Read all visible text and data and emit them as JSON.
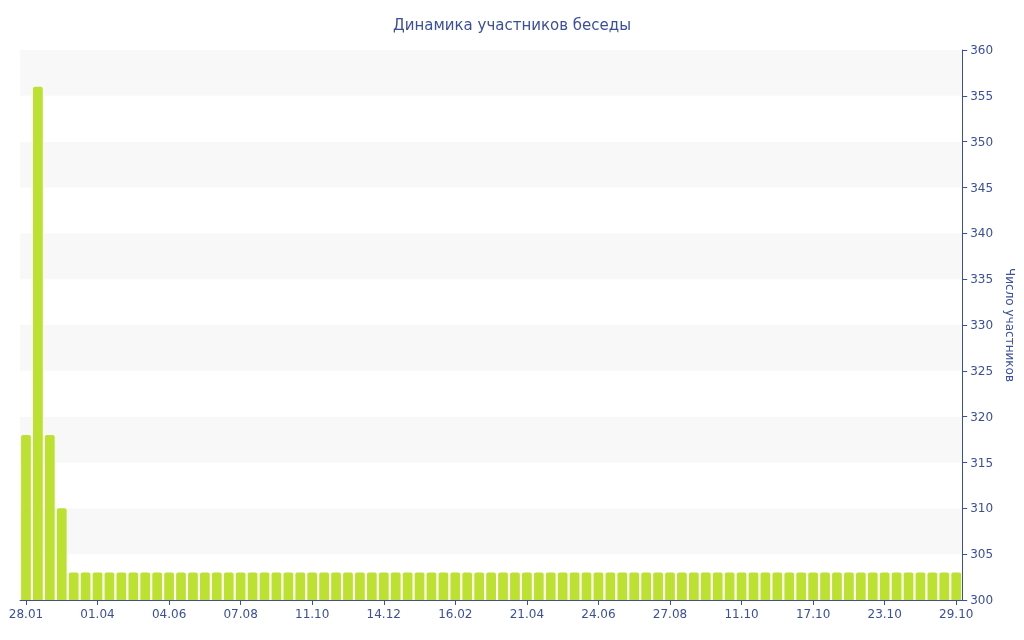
{
  "chart_data": {
    "type": "bar",
    "title": "Динамика участников беседы",
    "ylabel": "Число участников",
    "categories": [
      "28.01",
      null,
      null,
      null,
      null,
      null,
      "01.04",
      null,
      null,
      null,
      null,
      null,
      "04.06",
      null,
      null,
      null,
      null,
      null,
      "07.08",
      null,
      null,
      null,
      null,
      null,
      "11.10",
      null,
      null,
      null,
      null,
      null,
      "14.12",
      null,
      null,
      null,
      null,
      null,
      "16.02",
      null,
      null,
      null,
      null,
      null,
      "21.04",
      null,
      null,
      null,
      null,
      null,
      "24.06",
      null,
      null,
      null,
      null,
      null,
      "27.08",
      null,
      null,
      null,
      null,
      null,
      "11.10",
      null,
      null,
      null,
      null,
      null,
      "17.10",
      null,
      null,
      null,
      null,
      null,
      "23.10",
      null,
      null,
      null,
      null,
      null,
      "29.10"
    ],
    "values": [
      318,
      356,
      318,
      310,
      303,
      303,
      303,
      303,
      303,
      303,
      303,
      303,
      303,
      303,
      303,
      303,
      303,
      303,
      303,
      303,
      303,
      303,
      303,
      303,
      303,
      303,
      303,
      303,
      303,
      303,
      303,
      303,
      303,
      303,
      303,
      303,
      303,
      303,
      303,
      303,
      303,
      303,
      303,
      303,
      303,
      303,
      303,
      303,
      303,
      303,
      303,
      303,
      303,
      303,
      303,
      303,
      303,
      303,
      303,
      303,
      303,
      303,
      303,
      303,
      303,
      303,
      303,
      303,
      303,
      303,
      303,
      303,
      303,
      303,
      303,
      303,
      303,
      303,
      303
    ],
    "color": "#bde130",
    "ylim": [
      300,
      360
    ],
    "yticks": [
      300,
      305,
      310,
      315,
      320,
      325,
      330,
      335,
      340,
      345,
      350,
      355,
      360
    ]
  }
}
